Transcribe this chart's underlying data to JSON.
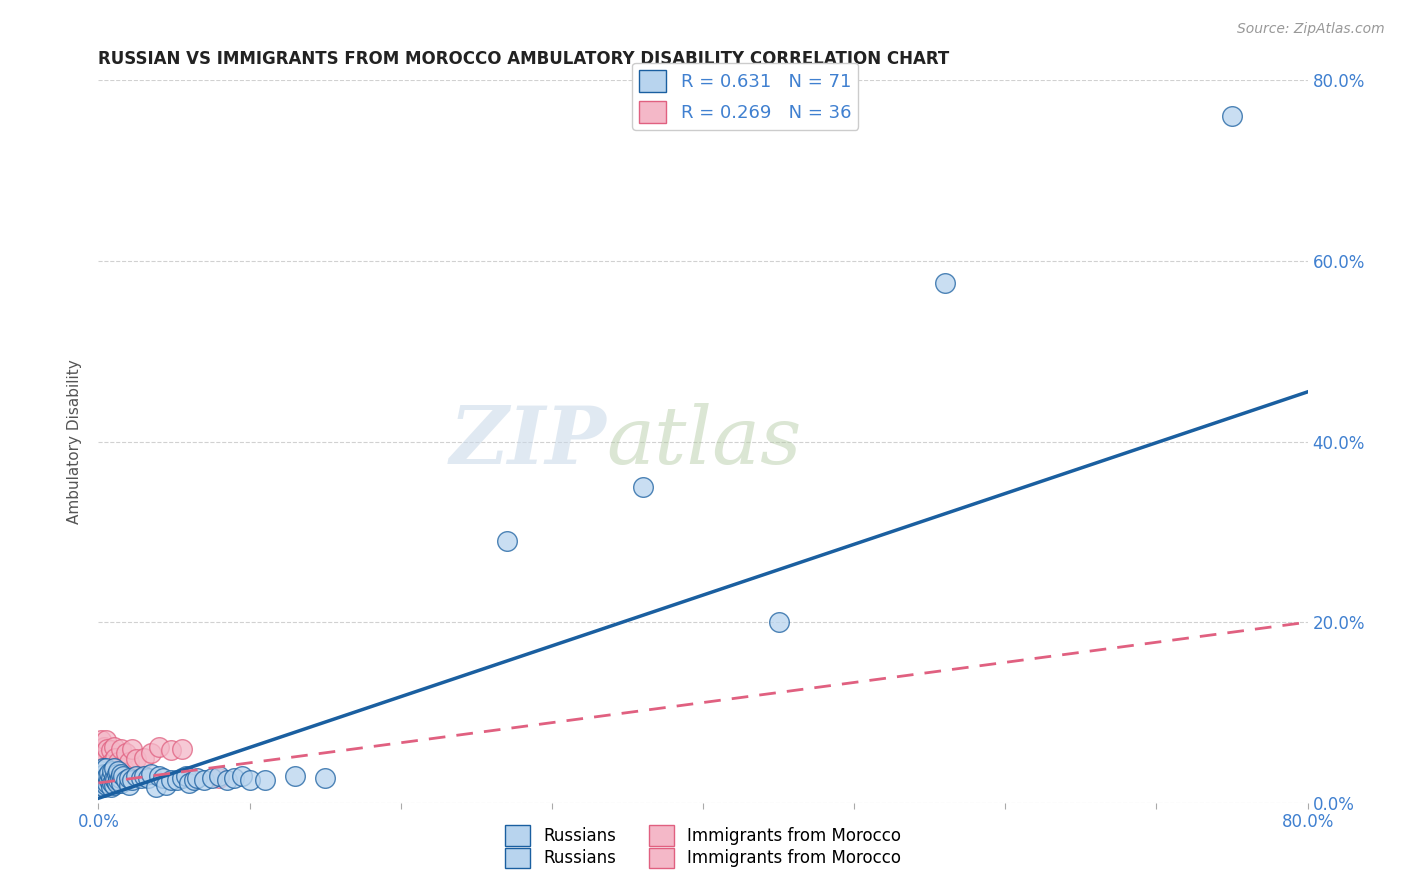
{
  "title": "RUSSIAN VS IMMIGRANTS FROM MOROCCO AMBULATORY DISABILITY CORRELATION CHART",
  "source": "Source: ZipAtlas.com",
  "xlabel": "",
  "ylabel": "Ambulatory Disability",
  "watermark_zip": "ZIP",
  "watermark_atlas": "atlas",
  "r_russian": 0.631,
  "n_russian": 71,
  "r_morocco": 0.269,
  "n_morocco": 36,
  "xlim": [
    0.0,
    0.8
  ],
  "ylim": [
    0.0,
    0.8
  ],
  "xticks": [
    0.0,
    0.1,
    0.2,
    0.3,
    0.4,
    0.5,
    0.6,
    0.7,
    0.8
  ],
  "yticks": [
    0.0,
    0.2,
    0.4,
    0.6,
    0.8
  ],
  "ytick_labels_right": [
    "0.0%",
    "20.0%",
    "40.0%",
    "60.0%",
    "80.0%"
  ],
  "color_russian": "#b8d4ee",
  "color_morocco": "#f4b8c8",
  "color_russian_line": "#1a5fa0",
  "color_morocco_line": "#e06080",
  "color_text_blue": "#4080d0",
  "background_color": "#ffffff",
  "grid_color": "#cccccc",
  "russians_x": [
    0.001,
    0.001,
    0.001,
    0.001,
    0.002,
    0.002,
    0.002,
    0.003,
    0.003,
    0.003,
    0.004,
    0.004,
    0.004,
    0.005,
    0.005,
    0.005,
    0.006,
    0.006,
    0.007,
    0.007,
    0.008,
    0.008,
    0.009,
    0.009,
    0.01,
    0.01,
    0.01,
    0.011,
    0.012,
    0.012,
    0.013,
    0.013,
    0.014,
    0.015,
    0.015,
    0.016,
    0.018,
    0.02,
    0.02,
    0.022,
    0.025,
    0.028,
    0.03,
    0.033,
    0.035,
    0.038,
    0.04,
    0.043,
    0.045,
    0.048,
    0.052,
    0.055,
    0.058,
    0.06,
    0.063,
    0.065,
    0.07,
    0.075,
    0.08,
    0.085,
    0.09,
    0.095,
    0.1,
    0.11,
    0.13,
    0.15,
    0.27,
    0.36,
    0.45,
    0.56,
    0.75
  ],
  "russians_y": [
    0.02,
    0.025,
    0.03,
    0.035,
    0.02,
    0.028,
    0.035,
    0.022,
    0.03,
    0.038,
    0.018,
    0.025,
    0.032,
    0.02,
    0.028,
    0.038,
    0.022,
    0.03,
    0.025,
    0.033,
    0.018,
    0.028,
    0.022,
    0.035,
    0.02,
    0.028,
    0.038,
    0.025,
    0.022,
    0.032,
    0.025,
    0.035,
    0.028,
    0.022,
    0.032,
    0.03,
    0.025,
    0.02,
    0.028,
    0.025,
    0.03,
    0.028,
    0.03,
    0.028,
    0.032,
    0.018,
    0.03,
    0.028,
    0.02,
    0.025,
    0.025,
    0.028,
    0.03,
    0.022,
    0.025,
    0.028,
    0.025,
    0.028,
    0.03,
    0.025,
    0.028,
    0.03,
    0.025,
    0.025,
    0.03,
    0.028,
    0.29,
    0.35,
    0.2,
    0.575,
    0.76
  ],
  "morocco_x": [
    0.001,
    0.001,
    0.001,
    0.002,
    0.002,
    0.002,
    0.003,
    0.003,
    0.004,
    0.004,
    0.005,
    0.005,
    0.005,
    0.006,
    0.006,
    0.007,
    0.008,
    0.008,
    0.009,
    0.01,
    0.01,
    0.011,
    0.012,
    0.013,
    0.015,
    0.016,
    0.018,
    0.02,
    0.022,
    0.025,
    0.03,
    0.035,
    0.04,
    0.048,
    0.055,
    0.08
  ],
  "morocco_y": [
    0.025,
    0.04,
    0.06,
    0.03,
    0.05,
    0.07,
    0.035,
    0.055,
    0.04,
    0.062,
    0.03,
    0.05,
    0.07,
    0.038,
    0.06,
    0.042,
    0.035,
    0.058,
    0.045,
    0.038,
    0.062,
    0.05,
    0.04,
    0.045,
    0.06,
    0.038,
    0.055,
    0.045,
    0.06,
    0.048,
    0.05,
    0.055,
    0.062,
    0.058,
    0.06,
    0.028
  ],
  "russian_line_x": [
    0.0,
    0.8
  ],
  "russian_line_y": [
    0.005,
    0.455
  ],
  "morocco_line_x": [
    0.0,
    0.8
  ],
  "morocco_line_y": [
    0.022,
    0.2
  ]
}
